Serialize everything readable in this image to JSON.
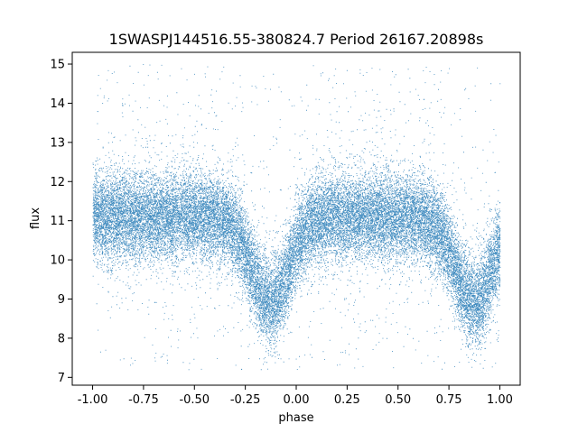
{
  "chart_data": {
    "type": "scatter",
    "title": "1SWASPJ144516.55-380824.7 Period 26167.20898s",
    "xlabel": "phase",
    "ylabel": "flux",
    "xlim": [
      -1.1,
      1.1
    ],
    "ylim": [
      6.8,
      15.3
    ],
    "xticks": [
      "-1.00",
      "-0.75",
      "-0.50",
      "-0.25",
      "0.00",
      "0.25",
      "0.50",
      "0.75",
      "1.00"
    ],
    "xtick_values": [
      -1.0,
      -0.75,
      -0.5,
      -0.25,
      0.0,
      0.25,
      0.5,
      0.75,
      1.0
    ],
    "yticks": [
      "7",
      "8",
      "9",
      "10",
      "11",
      "12",
      "13",
      "14",
      "15"
    ],
    "ytick_values": [
      7,
      8,
      9,
      10,
      11,
      12,
      13,
      14,
      15
    ],
    "grid": false,
    "point_color": "#1f77b4",
    "point_count_estimate": 30000,
    "baseline_flux": 11.1,
    "baseline_spread": 0.55,
    "eclipses": [
      {
        "phase_center": -0.13,
        "min_flux": 8.9,
        "width": 0.09
      },
      {
        "phase_center": 0.87,
        "min_flux": 8.9,
        "width": 0.09
      }
    ],
    "phase_range": [
      -1.0,
      1.0
    ],
    "outlier_flux_range": [
      7.2,
      15.0
    ]
  }
}
